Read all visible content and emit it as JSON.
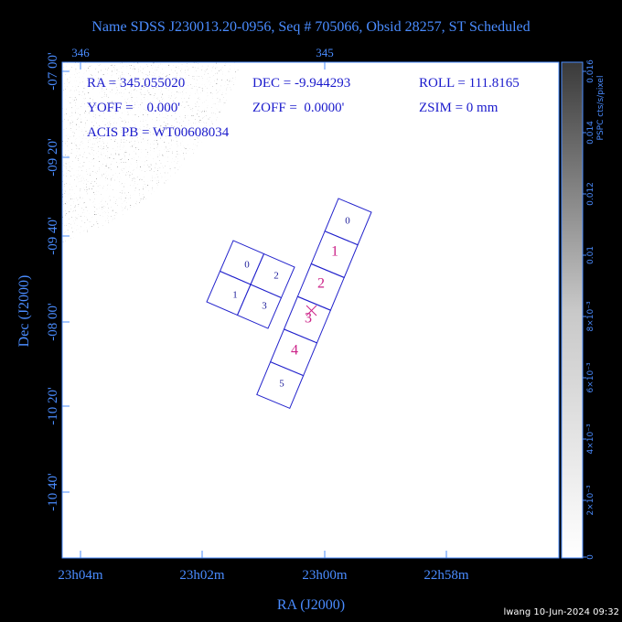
{
  "title": "Name SDSS J230013.20-0956, Seq # 705066, Obsid 28257, ST Scheduled",
  "plot": {
    "top_axis": [
      "346",
      "345"
    ],
    "left_axis": [
      "-07 00'",
      "-09 20'",
      "-09 40'",
      "-08 00'",
      "-10 20'",
      "-10 40'"
    ],
    "bottom_axis": [
      "23h04m",
      "23h02m",
      "23h00m",
      "22h58m"
    ],
    "x_label": "RA (J2000)",
    "y_label": "Dec (J2000)",
    "info": [
      "RA = 345.055020",
      "DEC = -9.944293",
      "ROLL = 111.8165",
      "YOFF =    0.000'",
      "ZOFF =  0.0000'",
      "ZSIM = 0 mm",
      "ACIS PB = WT00608034"
    ],
    "acis_i_chips": [
      "0",
      "2",
      "1",
      "3"
    ],
    "acis_s_chips": [
      "0",
      "1",
      "2",
      "3",
      "4",
      "5"
    ]
  },
  "colorbar": {
    "label": "PSPC cts/s/pixel",
    "ticks": [
      "0.016",
      "0.014",
      "0.012",
      "0.01",
      "8×10⁻³",
      "6×10⁻³",
      "4×10⁻³",
      "2×10⁻³",
      "0"
    ]
  },
  "footer": "lwang 10-Jun-2024 09:32"
}
